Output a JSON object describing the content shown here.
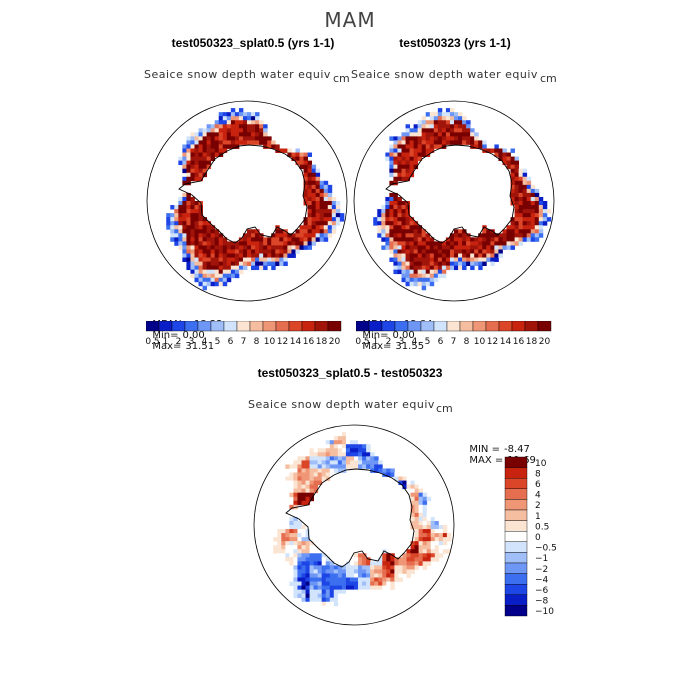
{
  "figure": {
    "title": "MAM"
  },
  "colors": {
    "palette_abs": [
      "#00008b",
      "#0a1ec8",
      "#1e46e6",
      "#3c6ef0",
      "#6e96f5",
      "#a0bef8",
      "#d2e4fb",
      "#fbe4d2",
      "#f5bea0",
      "#ee9676",
      "#e66e50",
      "#dc4628",
      "#c8230f",
      "#a0140a",
      "#780000"
    ],
    "palette_diff": [
      "#00008b",
      "#0a1ec8",
      "#1e46e6",
      "#3c6ef0",
      "#6e96f5",
      "#a0bef8",
      "#d2e4fb",
      "#ffffff",
      "#fbe4d2",
      "#f5bea0",
      "#ee9676",
      "#e66e50",
      "#dc4628",
      "#c8230f",
      "#780000"
    ]
  },
  "panels": [
    {
      "title": "test050323_splat0.5 (yrs 1-1)",
      "variable": "Seaice snow depth water equiv",
      "units": "cm",
      "stats": {
        "mean_label": "MEAN=",
        "mean": "13.22",
        "min_label": "Min=",
        "min": "0.00",
        "max_label": "Max=",
        "max": "31.51"
      },
      "colorbar_labels": [
        "0.5",
        "1",
        "2",
        "3",
        "4",
        "5",
        "6",
        "7",
        "8",
        "10",
        "12",
        "14",
        "16",
        "18",
        "20"
      ]
    },
    {
      "title": "test050323 (yrs 1-1)",
      "variable": "Seaice snow depth water equiv",
      "units": "cm",
      "stats": {
        "mean_label": "MEAN=",
        "mean": "12.84",
        "min_label": "Min=",
        "min": "0.00",
        "max_label": "Max=",
        "max": "31.55"
      },
      "colorbar_labels": [
        "0.5",
        "1",
        "2",
        "3",
        "4",
        "5",
        "6",
        "7",
        "8",
        "10",
        "12",
        "14",
        "16",
        "18",
        "20"
      ]
    }
  ],
  "diff_panel": {
    "title": "test050323_splat0.5 - test050323",
    "variable": "Seaice snow depth water equiv",
    "units": "cm",
    "stats": {
      "min_label": "MIN =",
      "min": "-8.47",
      "max_label": "MAX =",
      "max": "11.69"
    },
    "colorbar_labels": [
      "10",
      "8",
      "6",
      "4",
      "2",
      "1",
      "0.5",
      "0",
      "−0.5",
      "−1",
      "−2",
      "−4",
      "−6",
      "−8",
      "−10"
    ]
  },
  "chart_data": [
    {
      "type": "heatmap",
      "projection": "south polar stereographic",
      "title": "test050323_splat0.5 (yrs 1-1)",
      "variable": "Seaice snow depth water equiv",
      "units": "cm",
      "levels": [
        0.5,
        1,
        2,
        3,
        4,
        5,
        6,
        7,
        8,
        10,
        12,
        14,
        16,
        18,
        20
      ],
      "mean": 13.22,
      "min": 0.0,
      "max": 31.51
    },
    {
      "type": "heatmap",
      "projection": "south polar stereographic",
      "title": "test050323 (yrs 1-1)",
      "variable": "Seaice snow depth water equiv",
      "units": "cm",
      "levels": [
        0.5,
        1,
        2,
        3,
        4,
        5,
        6,
        7,
        8,
        10,
        12,
        14,
        16,
        18,
        20
      ],
      "mean": 12.84,
      "min": 0.0,
      "max": 31.55
    },
    {
      "type": "heatmap",
      "projection": "south polar stereographic",
      "title": "test050323_splat0.5 - test050323",
      "variable": "Seaice snow depth water equiv",
      "units": "cm",
      "levels": [
        -10,
        -8,
        -6,
        -4,
        -2,
        -1,
        -0.5,
        0,
        0.5,
        1,
        2,
        4,
        6,
        8,
        10
      ],
      "min": -8.47,
      "max": 11.69
    }
  ]
}
